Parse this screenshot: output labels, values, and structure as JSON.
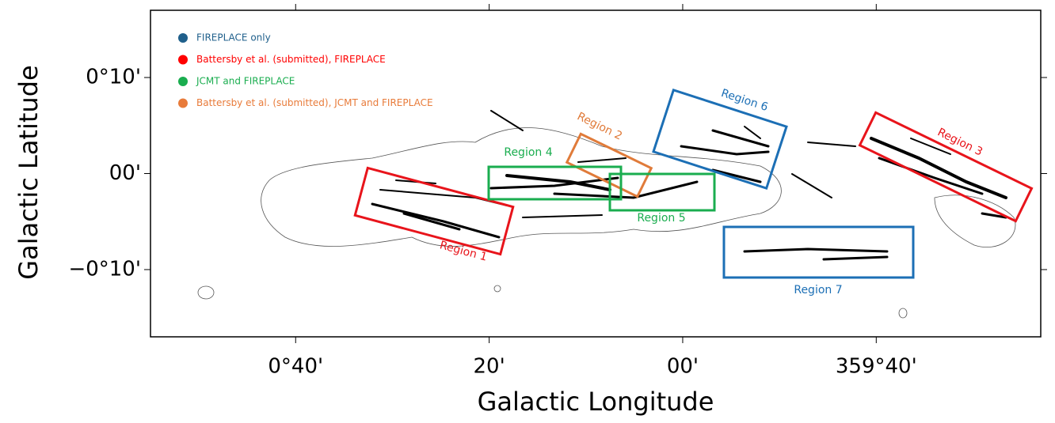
{
  "chart_data": {
    "type": "map",
    "x_label": "Galactic Longitude",
    "y_label": "Galactic Latitude",
    "xlim": [
      55,
      -37
    ],
    "ylim": [
      -17,
      17
    ],
    "xticks": [
      {
        "value": 40,
        "label": "0°40'"
      },
      {
        "value": 20,
        "label": "20'"
      },
      {
        "value": 0,
        "label": "00'"
      },
      {
        "value": -20,
        "label": "359°40'"
      }
    ],
    "yticks": [
      {
        "value": 10,
        "label": "0°10'"
      },
      {
        "value": 0,
        "label": "00'"
      },
      {
        "value": -10,
        "label": "−0°10'"
      }
    ],
    "legend": [
      {
        "name": "FIREPLACE only",
        "color": "#1f5f8b"
      },
      {
        "name": "Battersby et al. (submitted), FIREPLACE",
        "color": "#ff0000"
      },
      {
        "name": "JCMT and FIREPLACE",
        "color": "#1aad4f"
      },
      {
        "name": "Battersby et al. (submitted), JCMT and FIREPLACE",
        "color": "#e87b3a"
      }
    ],
    "regions": [
      {
        "label": "Region 1",
        "color": "#e8141b"
      },
      {
        "label": "Region 2",
        "color": "#e07b3a"
      },
      {
        "label": "Region 3",
        "color": "#e8141b"
      },
      {
        "label": "Region 4",
        "color": "#1aad4f"
      },
      {
        "label": "Region 5",
        "color": "#1aad4f"
      },
      {
        "label": "Region 6",
        "color": "#1c6fb5"
      },
      {
        "label": "Region 7",
        "color": "#1c6fb5"
      }
    ]
  }
}
